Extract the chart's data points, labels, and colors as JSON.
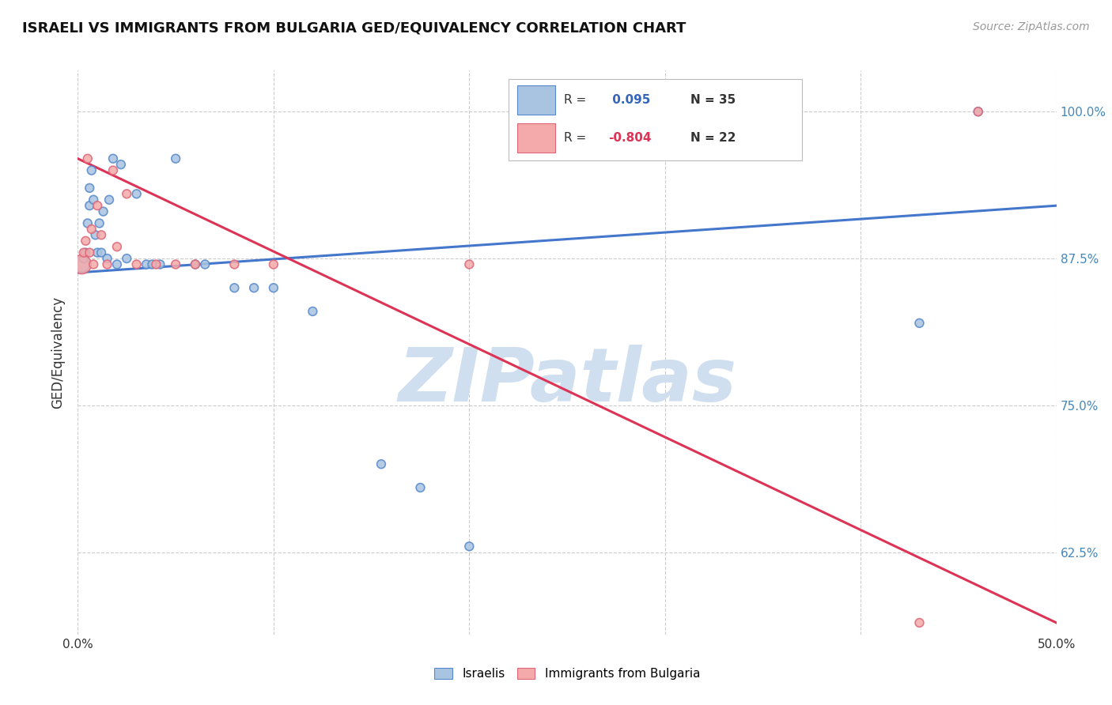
{
  "title": "ISRAELI VS IMMIGRANTS FROM BULGARIA GED/EQUIVALENCY CORRELATION CHART",
  "source": "Source: ZipAtlas.com",
  "ylabel_label": "GED/Equivalency",
  "xlim": [
    0.0,
    0.5
  ],
  "ylim": [
    0.555,
    1.035
  ],
  "yticks": [
    0.625,
    0.75,
    0.875,
    1.0
  ],
  "yticklabels": [
    "62.5%",
    "75.0%",
    "87.5%",
    "100.0%"
  ],
  "xtick_positions": [
    0.0,
    0.1,
    0.2,
    0.3,
    0.4,
    0.5
  ],
  "xticklabels": [
    "0.0%",
    "",
    "",
    "",
    "",
    "50.0%"
  ],
  "legend_R_blue": "0.095",
  "legend_N_blue": "35",
  "legend_R_pink": "-0.804",
  "legend_N_pink": "22",
  "blue_scatter_color": "#A8C4E0",
  "blue_edge_color": "#5588CC",
  "pink_scatter_color": "#F4AAAA",
  "pink_edge_color": "#DD6677",
  "line_blue_color": "#4477CC",
  "line_pink_color": "#DD3355",
  "watermark": "ZIPatlas",
  "watermark_color": "#D0DFF0",
  "background_color": "#FFFFFF",
  "grid_color": "#CCCCCC",
  "blue_points_x": [
    0.002,
    0.003,
    0.004,
    0.005,
    0.006,
    0.006,
    0.007,
    0.008,
    0.009,
    0.01,
    0.011,
    0.012,
    0.013,
    0.015,
    0.016,
    0.018,
    0.02,
    0.022,
    0.025,
    0.03,
    0.035,
    0.038,
    0.042,
    0.05,
    0.06,
    0.065,
    0.08,
    0.09,
    0.1,
    0.12,
    0.155,
    0.175,
    0.2,
    0.43,
    0.46
  ],
  "blue_points_y": [
    0.87,
    0.875,
    0.88,
    0.905,
    0.92,
    0.935,
    0.95,
    0.925,
    0.895,
    0.88,
    0.905,
    0.88,
    0.915,
    0.875,
    0.925,
    0.96,
    0.87,
    0.955,
    0.875,
    0.93,
    0.87,
    0.87,
    0.87,
    0.96,
    0.87,
    0.87,
    0.85,
    0.85,
    0.85,
    0.83,
    0.7,
    0.68,
    0.63,
    0.82,
    1.0
  ],
  "blue_points_size": [
    200,
    60,
    60,
    60,
    60,
    60,
    60,
    60,
    60,
    60,
    60,
    60,
    60,
    60,
    60,
    60,
    60,
    60,
    60,
    60,
    60,
    60,
    60,
    60,
    60,
    60,
    60,
    60,
    60,
    60,
    60,
    60,
    60,
    60,
    60
  ],
  "pink_points_x": [
    0.002,
    0.003,
    0.004,
    0.005,
    0.006,
    0.007,
    0.008,
    0.01,
    0.012,
    0.015,
    0.018,
    0.02,
    0.025,
    0.03,
    0.04,
    0.05,
    0.06,
    0.08,
    0.1,
    0.2,
    0.43,
    0.46
  ],
  "pink_points_y": [
    0.87,
    0.88,
    0.89,
    0.96,
    0.88,
    0.9,
    0.87,
    0.92,
    0.895,
    0.87,
    0.95,
    0.885,
    0.93,
    0.87,
    0.87,
    0.87,
    0.87,
    0.87,
    0.87,
    0.87,
    0.565,
    1.0
  ],
  "pink_points_size": [
    300,
    60,
    60,
    60,
    60,
    60,
    60,
    60,
    60,
    60,
    60,
    60,
    60,
    60,
    60,
    60,
    60,
    60,
    60,
    60,
    60,
    60
  ],
  "blue_line_x": [
    0.0,
    0.5
  ],
  "blue_line_y": [
    0.863,
    0.92
  ],
  "pink_line_x": [
    0.0,
    0.5
  ],
  "pink_line_y": [
    0.96,
    0.565
  ]
}
